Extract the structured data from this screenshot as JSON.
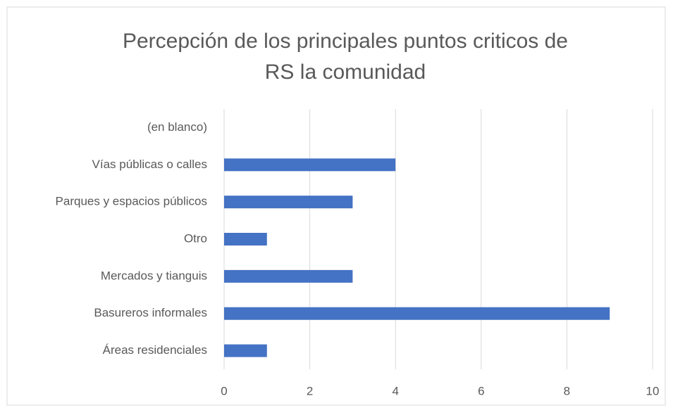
{
  "chart_data": {
    "type": "barh",
    "title": [
      "Percepción de los principales puntos criticos de",
      "RS  la comunidad"
    ],
    "categories": [
      "(en blanco)",
      "Vías públicas o calles",
      "Parques y espacios públicos",
      "Otro",
      "Mercados y tianguis",
      "Basureros informales",
      "Áreas residenciales"
    ],
    "values": [
      null,
      4,
      3,
      1,
      3,
      9,
      1
    ],
    "color": "#4472c4",
    "xlim": [
      0,
      10
    ],
    "xticks": [
      0,
      2,
      4,
      6,
      8,
      10
    ],
    "grid": true
  }
}
